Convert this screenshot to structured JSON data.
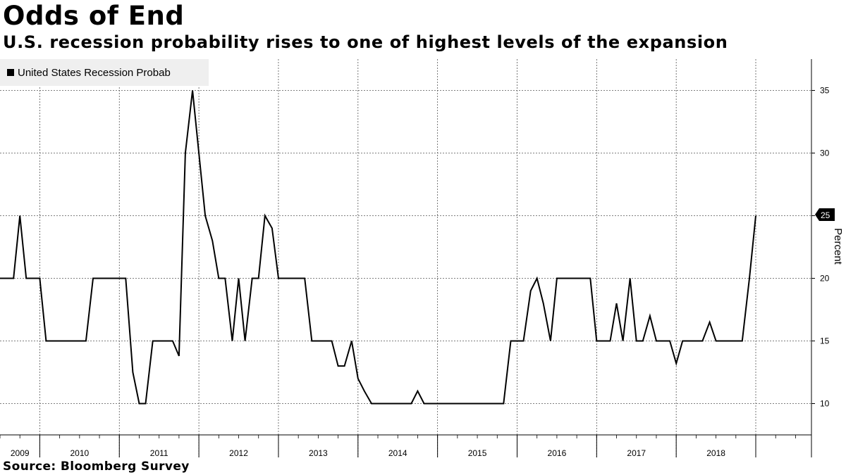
{
  "title": "Odds of End",
  "subtitle": "U.S. recession probability rises to one of highest levels of the expansion",
  "source": "Source: Bloomberg Survey",
  "chart_data": {
    "type": "line",
    "xlabel": "",
    "ylabel": "Percent",
    "ylim": [
      7.5,
      37.5
    ],
    "xlim": [
      2008.75,
      2018.95
    ],
    "yticks": [
      10,
      15,
      20,
      25,
      30,
      35
    ],
    "x_tick_labels": [
      "2009",
      "2010",
      "2011",
      "2012",
      "2013",
      "2014",
      "2015",
      "2016",
      "2017",
      "2018"
    ],
    "grid": true,
    "legend": {
      "placement": "top-left",
      "entries": [
        "United States Recession Probab"
      ]
    },
    "last_value_label": "25",
    "colors": {
      "line": "#000000",
      "grid": "#555555",
      "legend_bg": "#efefef"
    },
    "series": [
      {
        "name": "United States Recession Probab",
        "points": [
          [
            2008.75,
            20
          ],
          [
            2008.92,
            20
          ],
          [
            2009.0,
            25
          ],
          [
            2009.08,
            20
          ],
          [
            2009.25,
            20
          ],
          [
            2009.33,
            15
          ],
          [
            2009.5,
            15
          ],
          [
            2009.83,
            15
          ],
          [
            2009.92,
            20
          ],
          [
            2010.25,
            20
          ],
          [
            2010.33,
            20
          ],
          [
            2010.42,
            12.5
          ],
          [
            2010.5,
            10
          ],
          [
            2010.58,
            10
          ],
          [
            2010.67,
            15
          ],
          [
            2010.83,
            15
          ],
          [
            2010.92,
            15
          ],
          [
            2011.0,
            13.8
          ],
          [
            2011.08,
            30
          ],
          [
            2011.17,
            35
          ],
          [
            2011.25,
            30
          ],
          [
            2011.33,
            25
          ],
          [
            2011.42,
            23
          ],
          [
            2011.5,
            20
          ],
          [
            2011.58,
            20
          ],
          [
            2011.67,
            15
          ],
          [
            2011.75,
            20
          ],
          [
            2011.83,
            15
          ],
          [
            2011.92,
            20
          ],
          [
            2012.0,
            20
          ],
          [
            2012.08,
            25
          ],
          [
            2012.17,
            24
          ],
          [
            2012.25,
            20
          ],
          [
            2012.42,
            20
          ],
          [
            2012.58,
            20
          ],
          [
            2012.67,
            15
          ],
          [
            2012.83,
            15
          ],
          [
            2012.92,
            15
          ],
          [
            2013.0,
            13
          ],
          [
            2013.08,
            13
          ],
          [
            2013.17,
            15
          ],
          [
            2013.25,
            12
          ],
          [
            2013.33,
            11
          ],
          [
            2013.42,
            10
          ],
          [
            2013.58,
            10
          ],
          [
            2013.92,
            10
          ],
          [
            2014.0,
            11
          ],
          [
            2014.08,
            10
          ],
          [
            2014.5,
            10
          ],
          [
            2015.08,
            10
          ],
          [
            2015.17,
            15
          ],
          [
            2015.33,
            15
          ],
          [
            2015.42,
            19
          ],
          [
            2015.5,
            20
          ],
          [
            2015.58,
            18
          ],
          [
            2015.67,
            15
          ],
          [
            2015.75,
            20
          ],
          [
            2015.92,
            20
          ],
          [
            2016.17,
            20
          ],
          [
            2016.25,
            15
          ],
          [
            2016.42,
            15
          ],
          [
            2016.5,
            18
          ],
          [
            2016.58,
            15
          ],
          [
            2016.67,
            20
          ],
          [
            2016.75,
            15
          ],
          [
            2016.83,
            15
          ],
          [
            2016.92,
            17
          ],
          [
            2017.0,
            15
          ],
          [
            2017.17,
            15
          ],
          [
            2017.25,
            13.2
          ],
          [
            2017.33,
            15
          ],
          [
            2017.58,
            15
          ],
          [
            2017.67,
            16.5
          ],
          [
            2017.75,
            15
          ],
          [
            2018.08,
            15
          ],
          [
            2018.17,
            20
          ],
          [
            2018.25,
            25
          ]
        ]
      }
    ]
  }
}
